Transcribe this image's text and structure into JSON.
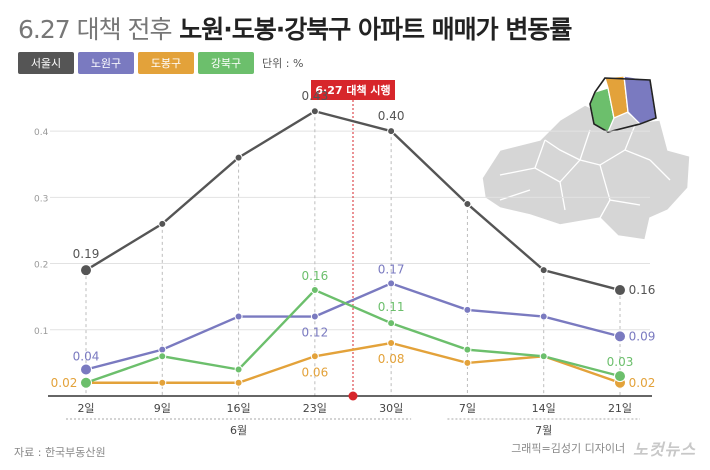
{
  "title": {
    "light": "6.27 대책 전후",
    "bold": "노원·도봉·강북구 아파트 매매가 변동률"
  },
  "legend": {
    "items": [
      {
        "label": "서울시",
        "color": "#555555"
      },
      {
        "label": "노원구",
        "color": "#7a7ac0"
      },
      {
        "label": "도봉구",
        "color": "#e3a23a"
      },
      {
        "label": "강북구",
        "color": "#6cbf6c"
      }
    ],
    "unit": "단위 : %"
  },
  "annotation": {
    "label": "6·27 대책 시행",
    "color": "#d7262b"
  },
  "footer": {
    "source": "자료 : 한국부동산원",
    "credit": "그래픽=김성기 디자이너",
    "logo": "노컷뉴스"
  },
  "chart_data": {
    "type": "line",
    "categories": [
      "2일",
      "9일",
      "16일",
      "23일",
      "30일",
      "7일",
      "14일",
      "21일"
    ],
    "month_groups": [
      {
        "label": "6월",
        "from": 0,
        "to": 4
      },
      {
        "label": "7월",
        "from": 5,
        "to": 7
      }
    ],
    "yticks": [
      "0.4",
      "0.3",
      "0.2",
      "0.1"
    ],
    "ylim": [
      0,
      0.45
    ],
    "series": [
      {
        "name": "서울시",
        "color": "#555555",
        "values": [
          0.19,
          0.26,
          0.36,
          0.43,
          0.4,
          0.29,
          0.19,
          0.16
        ]
      },
      {
        "name": "노원구",
        "color": "#7a7ac0",
        "values": [
          0.04,
          0.07,
          0.12,
          0.12,
          0.17,
          0.13,
          0.12,
          0.09
        ]
      },
      {
        "name": "도봉구",
        "color": "#e3a23a",
        "values": [
          0.02,
          0.02,
          0.02,
          0.06,
          0.08,
          0.05,
          0.06,
          0.02
        ]
      },
      {
        "name": "강북구",
        "color": "#6cbf6c",
        "values": [
          0.02,
          0.06,
          0.04,
          0.16,
          0.11,
          0.07,
          0.06,
          0.03
        ]
      }
    ],
    "data_labels": [
      {
        "series": 0,
        "index": 0,
        "text": "0.19"
      },
      {
        "series": 0,
        "index": 3,
        "text": "0.43"
      },
      {
        "series": 0,
        "index": 4,
        "text": "0.40"
      },
      {
        "series": 0,
        "index": 7,
        "text": "0.16"
      },
      {
        "series": 1,
        "index": 0,
        "text": "0.04"
      },
      {
        "series": 1,
        "index": 3,
        "text": "0.12"
      },
      {
        "series": 1,
        "index": 4,
        "text": "0.17"
      },
      {
        "series": 1,
        "index": 7,
        "text": "0.09"
      },
      {
        "series": 2,
        "index": 0,
        "text": "0.02"
      },
      {
        "series": 2,
        "index": 3,
        "text": "0.06"
      },
      {
        "series": 2,
        "index": 4,
        "text": "0.08"
      },
      {
        "series": 2,
        "index": 7,
        "text": "0.02"
      },
      {
        "series": 3,
        "index": 3,
        "text": "0.16"
      },
      {
        "series": 3,
        "index": 4,
        "text": "0.11"
      },
      {
        "series": 3,
        "index": 7,
        "text": "0.03"
      }
    ]
  },
  "map": {
    "base_color": "#d6d6d6",
    "highlight": [
      "노원구",
      "도봉구",
      "강북구"
    ]
  }
}
